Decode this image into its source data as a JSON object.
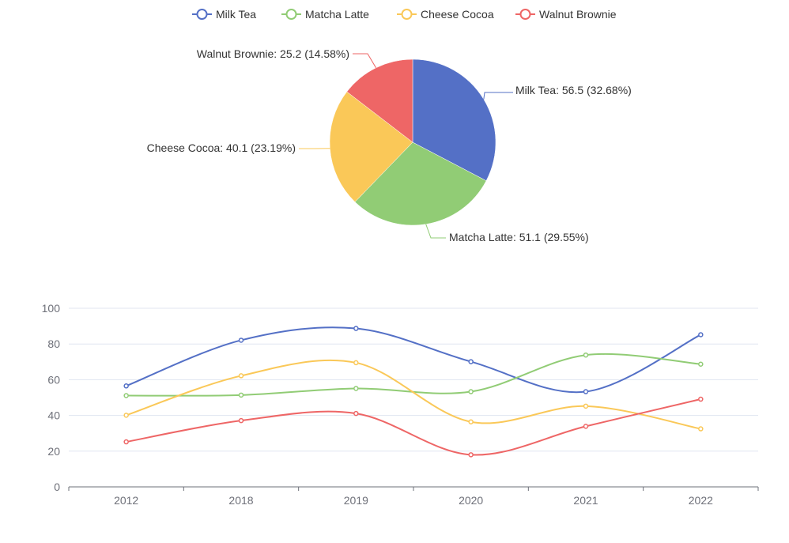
{
  "chart_data": [
    {
      "type": "pie",
      "labels": [
        "Milk Tea",
        "Matcha Latte",
        "Cheese Cocoa",
        "Walnut Brownie"
      ],
      "values": [
        56.5,
        51.1,
        40.1,
        25.2
      ],
      "label_texts": [
        "Milk Tea: 56.5 (32.68%)",
        "Matcha Latte: 51.1 (29.55%)",
        "Cheese Cocoa: 40.1 (23.19%)",
        "Walnut Brownie: 25.2 (14.58%)"
      ],
      "colors": [
        "#5470c6",
        "#91cc75",
        "#fac858",
        "#ee6666"
      ]
    },
    {
      "type": "line",
      "categories": [
        "2012",
        "2018",
        "2019",
        "2020",
        "2021",
        "2022"
      ],
      "series": [
        {
          "name": "Milk Tea",
          "values": [
            56.5,
            82.1,
            88.7,
            70.1,
            53.3,
            85.2
          ],
          "color": "#5470c6"
        },
        {
          "name": "Matcha Latte",
          "values": [
            51.1,
            51.4,
            55.1,
            53.3,
            73.8,
            68.7
          ],
          "color": "#91cc75"
        },
        {
          "name": "Cheese Cocoa",
          "values": [
            40.1,
            62.2,
            69.5,
            36.4,
            45.2,
            32.5
          ],
          "color": "#fac858"
        },
        {
          "name": "Walnut Brownie",
          "values": [
            25.2,
            37.1,
            41.1,
            18.0,
            33.9,
            49.1
          ],
          "color": "#ee6666"
        }
      ],
      "y_ticks": [
        "0",
        "20",
        "40",
        "60",
        "80",
        "100"
      ],
      "ylim": [
        0,
        100
      ],
      "title": "",
      "xlabel": "",
      "ylabel": ""
    }
  ],
  "legend": {
    "items": [
      "Milk Tea",
      "Matcha Latte",
      "Cheese Cocoa",
      "Walnut Brownie"
    ],
    "colors": [
      "#5470c6",
      "#91cc75",
      "#fac858",
      "#ee6666"
    ]
  }
}
